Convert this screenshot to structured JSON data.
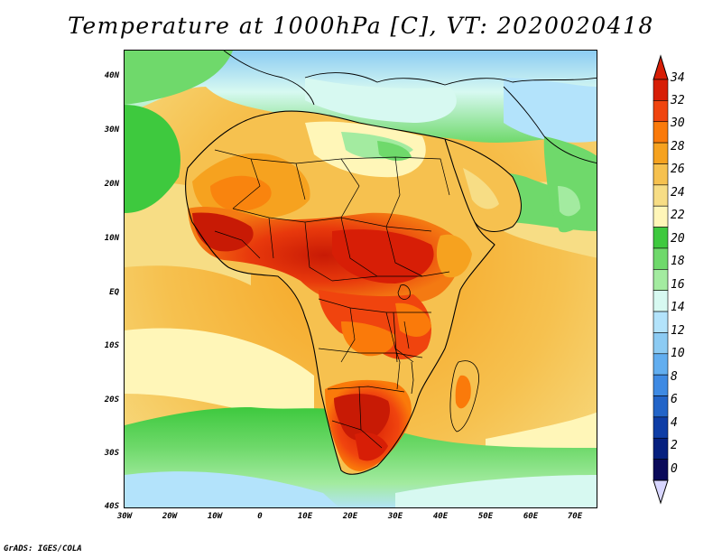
{
  "title": "Temperature at 1000hPa [C], VT: 2020020418",
  "credit": "GrADS: IGES/COLA",
  "map": {
    "lat_labels": [
      "40N",
      "30N",
      "20N",
      "10N",
      "EQ",
      "10S",
      "20S",
      "30S",
      "40S"
    ],
    "lon_labels": [
      "30W",
      "20W",
      "10W",
      "0",
      "10E",
      "20E",
      "30E",
      "40E",
      "50E",
      "60E",
      "70E"
    ],
    "extent": {
      "lon_min": -30,
      "lon_max": 75,
      "lat_min": -40,
      "lat_max": 45
    },
    "features": [
      "land-coastlines",
      "country-borders",
      "temperature-shading"
    ]
  },
  "colorbar": {
    "labels": [
      "34",
      "32",
      "30",
      "28",
      "26",
      "24",
      "22",
      "20",
      "18",
      "16",
      "14",
      "12",
      "10",
      "8",
      "6",
      "4",
      "2",
      "0"
    ],
    "colors": [
      "#d71e06",
      "#f0440e",
      "#fa7a0a",
      "#f6a21f",
      "#f6c14f",
      "#f7dd85",
      "#fff6b8",
      "#3ec93e",
      "#6fd96b",
      "#a3eba0",
      "#d7f9f1",
      "#b3e3fb",
      "#8ccbf3",
      "#62aef0",
      "#3e8ae3",
      "#2264c8",
      "#0e3da6",
      "#06207f",
      "#0a0a5a"
    ],
    "triangle_top_color": "#d71e06",
    "triangle_bottom_color": "#d8d6ff"
  }
}
